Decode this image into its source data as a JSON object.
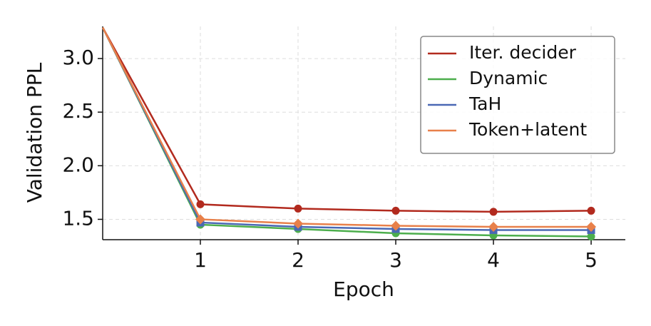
{
  "chart_data": {
    "type": "line",
    "x_label": "Epoch",
    "y_label": "Validation PPL",
    "x": [
      0,
      1,
      2,
      3,
      4,
      5
    ],
    "series": [
      {
        "name": "Iter. decider",
        "color": "#b22a1e",
        "marker": "o",
        "values": [
          3.29,
          1.64,
          1.6,
          1.58,
          1.57,
          1.58
        ]
      },
      {
        "name": "Dynamic",
        "color": "#4cae4c",
        "marker": "o",
        "values": [
          3.29,
          1.45,
          1.41,
          1.37,
          1.35,
          1.34
        ]
      },
      {
        "name": "TaH",
        "color": "#4a68b4",
        "marker": "s",
        "values": [
          3.29,
          1.47,
          1.43,
          1.41,
          1.4,
          1.4
        ]
      },
      {
        "name": "Token+latent",
        "color": "#e8804a",
        "marker": "D",
        "values": [
          3.29,
          1.5,
          1.46,
          1.44,
          1.43,
          1.43
        ]
      }
    ],
    "xlim": [
      0,
      5.35
    ],
    "ylim": [
      1.31,
      3.3
    ],
    "xticks": [
      1,
      2,
      3,
      4,
      5
    ],
    "yticks": [
      1.5,
      {
        "value": 2,
        "label": "2.0"
      },
      2.5,
      {
        "value": 3,
        "label": "3.0"
      }
    ],
    "grid": true,
    "legend": "upper right"
  }
}
